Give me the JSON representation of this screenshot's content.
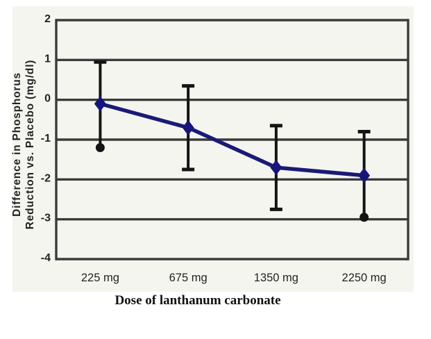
{
  "figure": {
    "caption": "Dose of lanthanum carbonate"
  },
  "chart_data": {
    "type": "line",
    "title": "",
    "xlabel": "Dose of lanthanum carbonate",
    "ylabel": "Difference in Phosphorus Reduction vs. Placebo (mg/dl)",
    "ylabel_lines": [
      "Difference in Phosphorus",
      "Reduction vs. Placebo (mg/dl)"
    ],
    "categories": [
      "225 mg",
      "675 mg",
      "1350 mg",
      "2250 mg"
    ],
    "series": [
      {
        "name": "Difference in phosphorus reduction vs. placebo",
        "values": [
          -0.1,
          -0.7,
          -1.7,
          -1.9
        ],
        "error_bar_top": [
          0.95,
          0.35,
          -0.65,
          -0.8
        ],
        "error_bar_bottom": [
          -1.2,
          -1.75,
          -2.75,
          -2.95
        ]
      }
    ],
    "ylim": [
      -4,
      2
    ],
    "ytick_interval": 1,
    "ytick_labels": [
      "2",
      "1",
      "0",
      "-1",
      "-2",
      "-3",
      "-4"
    ],
    "grid": "horizontal-only",
    "legend": "none",
    "marker": "diamond",
    "error_cap_bottom_shape": [
      "dot",
      "bar",
      "bar",
      "dot"
    ],
    "error_cap_top_shape": [
      "bar",
      "bar",
      "bar",
      "bar"
    ],
    "colors": {
      "series_line": "#1a1a78",
      "marker": "#16167a",
      "error_bar": "#141414",
      "gridline": "#3b3b3b",
      "panel_background": "#f5f5f0",
      "page_background": "#ffffff",
      "text": "#222222",
      "caption_text": "#111111"
    }
  }
}
